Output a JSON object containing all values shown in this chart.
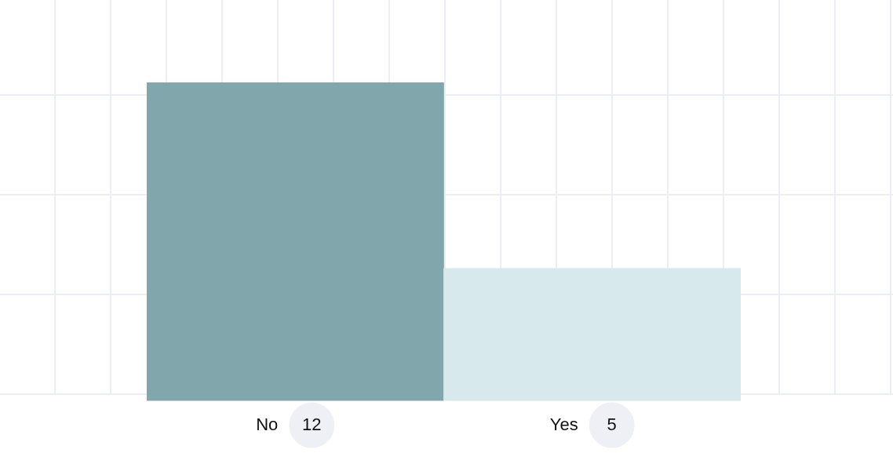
{
  "chart_data": {
    "type": "bar",
    "categories": [
      "No",
      "Yes"
    ],
    "values": [
      12,
      5
    ],
    "colors": [
      "#81a6ab",
      "#d8e9ed"
    ],
    "data_labels": true,
    "legend": false
  }
}
